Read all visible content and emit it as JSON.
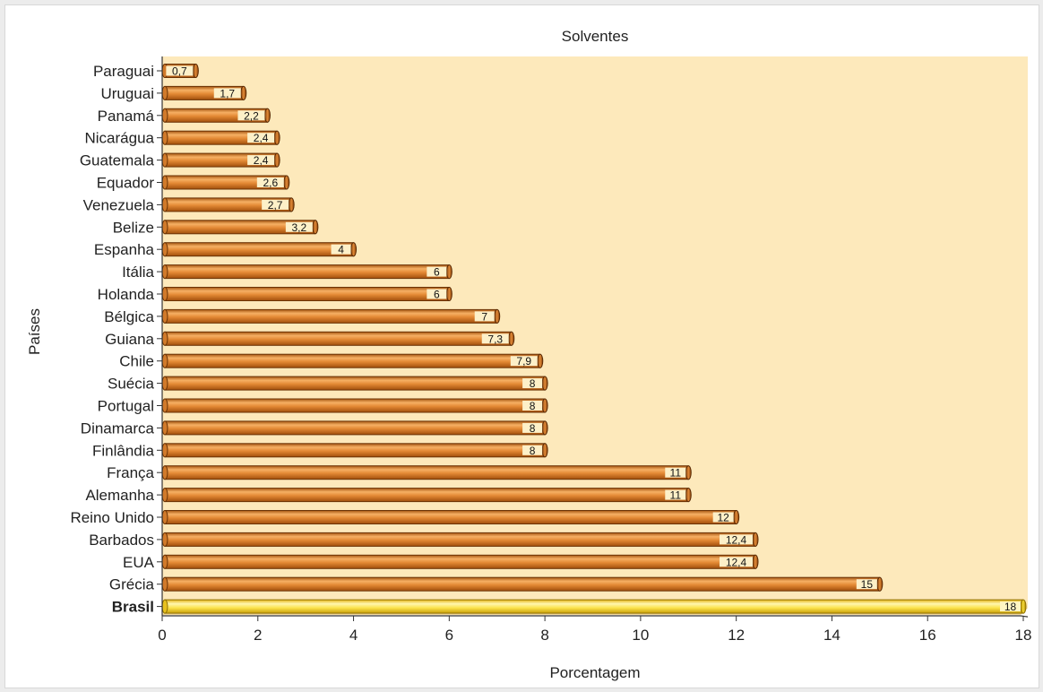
{
  "chart_data": {
    "type": "bar",
    "orientation": "horizontal",
    "title": "Solventes",
    "xlabel": "Porcentagem",
    "ylabel": "Países",
    "xlim": [
      0,
      18
    ],
    "xticks": [
      "0",
      "2",
      "4",
      "6",
      "8",
      "10",
      "12",
      "14",
      "16",
      "18"
    ],
    "categories": [
      "Paraguai",
      "Uruguai",
      "Panamá",
      "Nicarágua",
      "Guatemala",
      "Equador",
      "Venezuela",
      "Belize",
      "Espanha",
      "Itália",
      "Holanda",
      "Bélgica",
      "Guiana",
      "Chile",
      "Suécia",
      "Portugal",
      "Dinamarca",
      "Finlândia",
      "França",
      "Alemanha",
      "Reino Unido",
      "Barbados",
      "EUA",
      "Grécia",
      "Brasil"
    ],
    "values": [
      0.7,
      1.7,
      2.2,
      2.4,
      2.4,
      2.6,
      2.7,
      3.2,
      4,
      6,
      6,
      7,
      7.3,
      7.9,
      8,
      8,
      8,
      8,
      11,
      11,
      12,
      12.4,
      12.4,
      15,
      18
    ],
    "value_labels": [
      "0,7",
      "1,7",
      "2,2",
      "2,4",
      "2,4",
      "2,6",
      "2,7",
      "3,2",
      "4",
      "6",
      "6",
      "7",
      "7,3",
      "7,9",
      "8",
      "8",
      "8",
      "8",
      "11",
      "11",
      "12",
      "12,4",
      "12,4",
      "15",
      "18"
    ],
    "highlight": "Brasil",
    "grid": false,
    "colors": {
      "plot_background": "#fde9bb",
      "bar": "#e9923b",
      "bar_dark": "#b35a12",
      "bar_highlight": "#fae04c",
      "bar_highlight_dark": "#d8ad10",
      "label_box": "#fdf0c8",
      "axis": "#333333"
    }
  }
}
